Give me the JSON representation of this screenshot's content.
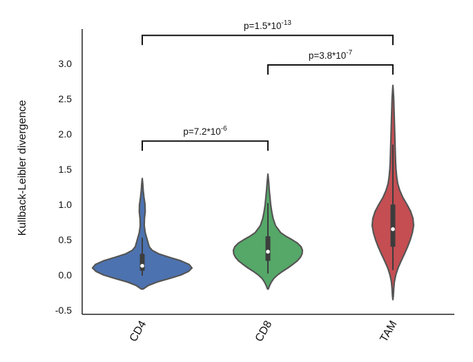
{
  "chart_data": {
    "type": "violin",
    "ylabel": "Kullback-Leibler  divergence",
    "xlabel": "",
    "ylim": [
      -0.55,
      3.45
    ],
    "yticks": [
      -0.5,
      0.0,
      0.5,
      1.0,
      1.5,
      2.0,
      2.5,
      3.0
    ],
    "ytick_labels": [
      "-0.5",
      "0.0",
      "0.5",
      "1.0",
      "1.5",
      "2.0",
      "2.5",
      "3.0"
    ],
    "categories": [
      "CD4",
      "CD8",
      "TAM"
    ],
    "grid": false,
    "violins": [
      {
        "category": "CD4",
        "color": "#4c72b0",
        "min": -0.2,
        "max": 1.37,
        "whisker_low": -0.01,
        "q1": 0.06,
        "median": 0.13,
        "q3": 0.3,
        "whisker_high": 0.53,
        "density": [
          [
            -0.2,
            0.02
          ],
          [
            -0.15,
            0.12
          ],
          [
            -0.1,
            0.3
          ],
          [
            -0.05,
            0.55
          ],
          [
            0.0,
            0.78
          ],
          [
            0.05,
            0.93
          ],
          [
            0.1,
            1.0
          ],
          [
            0.15,
            0.94
          ],
          [
            0.2,
            0.78
          ],
          [
            0.25,
            0.55
          ],
          [
            0.3,
            0.33
          ],
          [
            0.35,
            0.2
          ],
          [
            0.4,
            0.14
          ],
          [
            0.5,
            0.1
          ],
          [
            0.6,
            0.06
          ],
          [
            0.7,
            0.04
          ],
          [
            0.8,
            0.045
          ],
          [
            0.9,
            0.06
          ],
          [
            1.0,
            0.055
          ],
          [
            1.1,
            0.035
          ],
          [
            1.2,
            0.02
          ],
          [
            1.3,
            0.01
          ],
          [
            1.37,
            0.0
          ]
        ]
      },
      {
        "category": "CD8",
        "color": "#55a868",
        "min": -0.2,
        "max": 1.43,
        "whisker_low": 0.02,
        "q1": 0.2,
        "median": 0.33,
        "q3": 0.55,
        "whisker_high": 1.02,
        "density": [
          [
            -0.2,
            0.01
          ],
          [
            -0.15,
            0.05
          ],
          [
            -0.1,
            0.1
          ],
          [
            -0.05,
            0.17
          ],
          [
            0.0,
            0.28
          ],
          [
            0.05,
            0.42
          ],
          [
            0.1,
            0.58
          ],
          [
            0.15,
            0.72
          ],
          [
            0.2,
            0.85
          ],
          [
            0.25,
            0.94
          ],
          [
            0.3,
            0.99
          ],
          [
            0.35,
            1.0
          ],
          [
            0.4,
            0.96
          ],
          [
            0.45,
            0.86
          ],
          [
            0.5,
            0.7
          ],
          [
            0.55,
            0.52
          ],
          [
            0.6,
            0.37
          ],
          [
            0.7,
            0.22
          ],
          [
            0.8,
            0.15
          ],
          [
            0.9,
            0.11
          ],
          [
            1.0,
            0.08
          ],
          [
            1.1,
            0.06
          ],
          [
            1.2,
            0.04
          ],
          [
            1.3,
            0.025
          ],
          [
            1.43,
            0.0
          ]
        ]
      },
      {
        "category": "TAM",
        "color": "#c44e52",
        "min": -0.35,
        "max": 2.69,
        "whisker_low": 0.07,
        "q1": 0.4,
        "median": 0.65,
        "q3": 1.0,
        "whisker_high": 1.85,
        "density": [
          [
            -0.35,
            0.0
          ],
          [
            -0.3,
            0.02
          ],
          [
            -0.2,
            0.04
          ],
          [
            -0.1,
            0.07
          ],
          [
            0.0,
            0.14
          ],
          [
            0.1,
            0.25
          ],
          [
            0.2,
            0.4
          ],
          [
            0.3,
            0.56
          ],
          [
            0.4,
            0.71
          ],
          [
            0.5,
            0.84
          ],
          [
            0.6,
            0.94
          ],
          [
            0.7,
            1.0
          ],
          [
            0.8,
            0.97
          ],
          [
            0.9,
            0.86
          ],
          [
            1.0,
            0.68
          ],
          [
            1.1,
            0.48
          ],
          [
            1.2,
            0.33
          ],
          [
            1.3,
            0.23
          ],
          [
            1.4,
            0.18
          ],
          [
            1.5,
            0.15
          ],
          [
            1.6,
            0.13
          ],
          [
            1.7,
            0.12
          ],
          [
            1.8,
            0.11
          ],
          [
            1.9,
            0.1
          ],
          [
            2.0,
            0.09
          ],
          [
            2.1,
            0.08
          ],
          [
            2.2,
            0.07
          ],
          [
            2.3,
            0.06
          ],
          [
            2.4,
            0.05
          ],
          [
            2.5,
            0.04
          ],
          [
            2.6,
            0.02
          ],
          [
            2.69,
            0.0
          ]
        ]
      }
    ],
    "annotations": [
      {
        "from": "CD4",
        "to": "CD8",
        "y": 1.9,
        "label_prefix": "p=7.2*10",
        "label_exp": "-6"
      },
      {
        "from": "CD8",
        "to": "TAM",
        "y": 2.98,
        "label_prefix": "p=3.8*10",
        "label_exp": "-7"
      },
      {
        "from": "CD4",
        "to": "TAM",
        "y": 3.4,
        "label_prefix": "p=1.5*10",
        "label_exp": "-13"
      }
    ]
  }
}
